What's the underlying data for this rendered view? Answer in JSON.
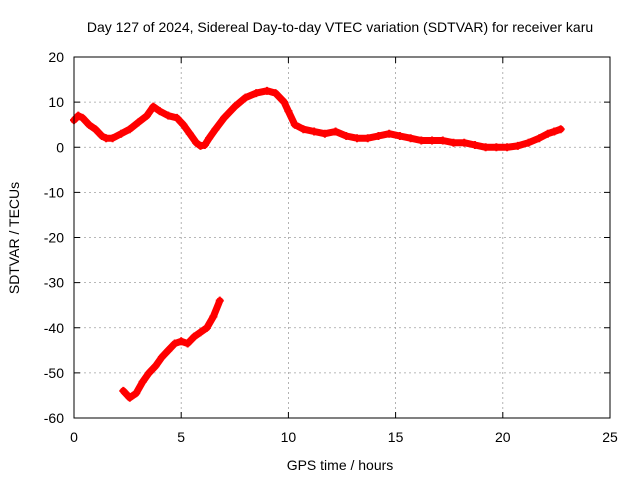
{
  "chart_data": {
    "type": "scatter",
    "title": "Day 127 of 2024, Sidereal Day-to-day VTEC variation (SDTVAR) for receiver karu",
    "xlabel": "GPS time / hours",
    "ylabel": "SDTVAR / TECUs",
    "xlim": [
      0,
      25
    ],
    "ylim": [
      -60,
      20
    ],
    "xticks": [
      "0",
      "5",
      "10",
      "15",
      "20",
      "25"
    ],
    "yticks": [
      "20",
      "10",
      "0",
      "-10",
      "-20",
      "-30",
      "-40",
      "-50",
      "-60"
    ],
    "grid": true,
    "series_color": "#ff0000",
    "series": [
      {
        "name": "sdtvar-main",
        "x": [
          0.0,
          0.2,
          0.4,
          0.7,
          1.0,
          1.3,
          1.5,
          1.8,
          2.2,
          2.6,
          3.0,
          3.4,
          3.7,
          4.0,
          4.4,
          4.8,
          5.1,
          5.4,
          5.7,
          5.9,
          6.1,
          6.3,
          6.6,
          7.0,
          7.5,
          8.0,
          8.5,
          9.0,
          9.4,
          9.8,
          10.0,
          10.3,
          10.7,
          11.2,
          11.7,
          12.2,
          12.7,
          13.2,
          13.7,
          14.2,
          14.7,
          15.2,
          15.7,
          16.2,
          16.7,
          17.2,
          17.7,
          18.2,
          18.7,
          19.2,
          19.7,
          20.2,
          20.7,
          21.2,
          21.7,
          22.1,
          22.4,
          22.7
        ],
        "y": [
          6,
          7,
          6.5,
          5,
          4,
          2.5,
          2,
          2,
          3,
          4,
          5.5,
          7,
          9,
          8,
          7,
          6.5,
          5,
          3,
          1,
          0.3,
          0.5,
          2,
          4,
          6.5,
          9,
          11,
          12,
          12.5,
          12,
          10,
          8,
          5,
          4,
          3.5,
          3,
          3.5,
          2.5,
          2,
          2,
          2.5,
          3,
          2.5,
          2,
          1.5,
          1.5,
          1.5,
          1,
          1,
          0.5,
          0,
          0,
          0,
          0.3,
          1,
          2,
          3,
          3.5,
          4
        ]
      },
      {
        "name": "sdtvar-lower",
        "x": [
          2.3,
          2.6,
          2.9,
          3.2,
          3.5,
          3.8,
          4.1,
          4.4,
          4.7,
          5.0,
          5.3,
          5.6,
          5.9,
          6.2,
          6.5,
          6.8
        ],
        "y": [
          -54,
          -55.5,
          -54.5,
          -52,
          -50,
          -48.5,
          -46.5,
          -45,
          -43.5,
          -43,
          -43.5,
          -42,
          -41,
          -40,
          -37.5,
          -34
        ]
      }
    ]
  }
}
